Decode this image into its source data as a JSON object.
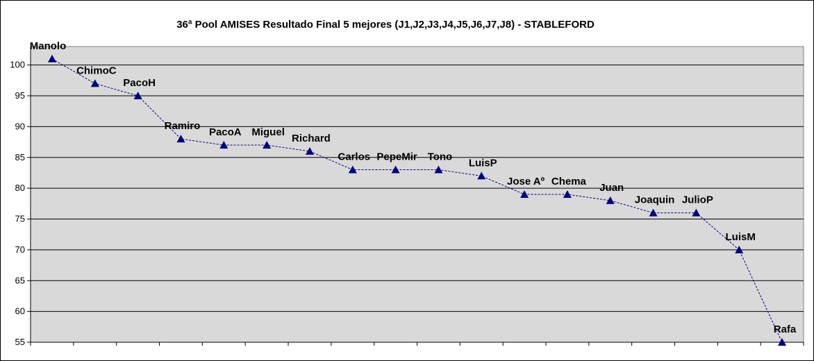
{
  "chart_data": {
    "type": "line",
    "title": "36ª Pool AMISES  Resultado Final 5 mejores (J1,J2,J3,J4,J5,J6,J7,J8)  - STABLEFORD",
    "xlabel": "",
    "ylabel": "",
    "ylim": [
      55,
      103
    ],
    "yticks": [
      "55",
      "60",
      "65",
      "70",
      "75",
      "80",
      "85",
      "90",
      "95",
      "100"
    ],
    "grid": true,
    "legend": "none",
    "colors": {
      "plot_bg": "#d9d9d9",
      "line": "#000080",
      "marker": "#000080",
      "grid": "#000000"
    },
    "points": [
      {
        "name": "Manolo",
        "value": 101
      },
      {
        "name": "ChimoC",
        "value": 97
      },
      {
        "name": "PacoH",
        "value": 95
      },
      {
        "name": "Ramiro",
        "value": 88
      },
      {
        "name": "PacoA",
        "value": 87
      },
      {
        "name": "Miguel",
        "value": 87
      },
      {
        "name": "Richard",
        "value": 86
      },
      {
        "name": "Carlos",
        "value": 83
      },
      {
        "name": "PepeMir",
        "value": 83
      },
      {
        "name": "Tono",
        "value": 83
      },
      {
        "name": "LuisP",
        "value": 82
      },
      {
        "name": "Jose Aº",
        "value": 79
      },
      {
        "name": "Chema",
        "value": 79
      },
      {
        "name": "Juan",
        "value": 78
      },
      {
        "name": "Joaquin",
        "value": 76
      },
      {
        "name": "JulioP",
        "value": 76
      },
      {
        "name": "LuisM",
        "value": 70
      },
      {
        "name": "Rafa",
        "value": 55
      }
    ]
  }
}
